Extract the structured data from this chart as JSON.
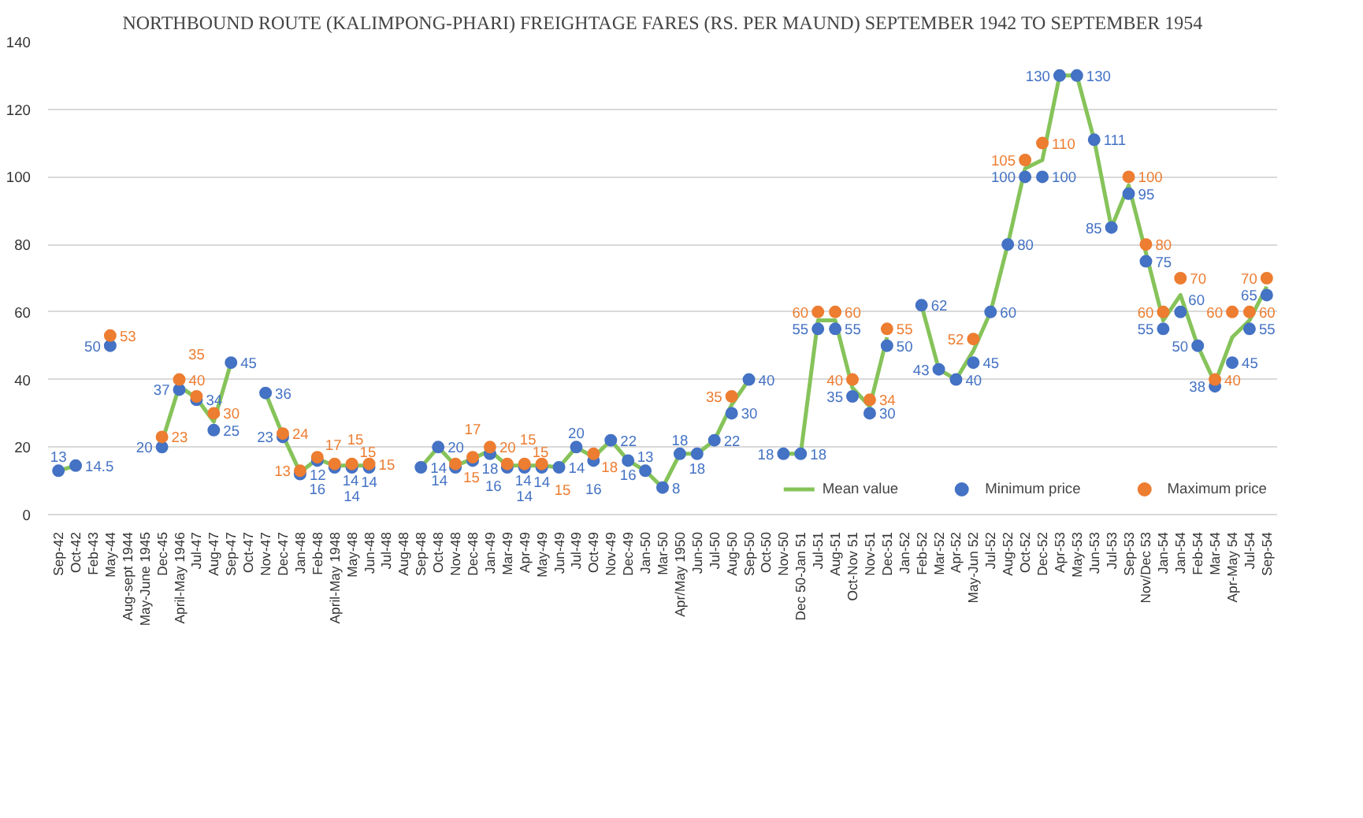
{
  "chart_data": {
    "type": "line",
    "title": "NORTHBOUND ROUTE (KALIMPONG-PHARI) FREIGHTAGE FARES (RS. PER MAUND) SEPTEMBER 1942 TO SEPTEMBER 1954",
    "categories": [
      "Sep-42",
      "Oct-42",
      "Feb-43",
      "May-44",
      "Aug-sept 1944",
      "May-June 1945",
      "Dec-45",
      "April-May 1946",
      "Jul-47",
      "Aug-47",
      "Sep-47",
      "Oct-47",
      "Nov-47",
      "Dec-47",
      "Jan-48",
      "Feb-48",
      "April-May 1948",
      "May-48",
      "Jun-48",
      "Jul-48",
      "Aug-48",
      "Sep-48",
      "Oct-48",
      "Nov-48",
      "Dec-48",
      "Jan-49",
      "Mar-49",
      "Apr-49",
      "May-49",
      "Jun-49",
      "Jul-49",
      "Oct-49",
      "Nov-49",
      "Dec-49",
      "Jan-50",
      "Mar-50",
      "Apr/May 1950",
      "Jun-50",
      "Jul-50",
      "Aug-50",
      "Sep-50",
      "Oct-50",
      "Nov-50",
      "Dec 50-Jan 51",
      "Jul-51",
      "Aug-51",
      "Oct-Nov 51",
      "Nov-51",
      "Dec-51",
      "Jan-52",
      "Feb-52",
      "Mar-52",
      "Apr-52",
      "May-Jun 52",
      "Jul-52",
      "Aug-52",
      "Oct-52",
      "Dec-52",
      "Apr-53",
      "May-53",
      "Jun-53",
      "Jul-53",
      "Sep-53",
      "Nov/Dec 53",
      "Jan-54",
      "Jan-54",
      "Feb-54",
      "Mar-54",
      "Apr-May 54",
      "Jul-54",
      "Sep-54"
    ],
    "series": [
      {
        "name": "Mean value",
        "color": "#86c35a",
        "marker": "none",
        "values": [
          13,
          14.5,
          null,
          null,
          null,
          null,
          21.5,
          38,
          34.5,
          27.5,
          45,
          null,
          36,
          23.5,
          12.5,
          16.5,
          14.5,
          14.5,
          14.5,
          null,
          null,
          14,
          20,
          14.5,
          16.5,
          19,
          14.5,
          14.5,
          14.5,
          14,
          20,
          17,
          22,
          16,
          13,
          8,
          18,
          18,
          22,
          32.5,
          40,
          null,
          18,
          18,
          57.5,
          57.5,
          37.5,
          32,
          52.5,
          null,
          62,
          43,
          40,
          48.5,
          60,
          80,
          102.5,
          105,
          130,
          130,
          111,
          85,
          97.5,
          77.5,
          57.5,
          65,
          50,
          39,
          52.5,
          57.5,
          67.5
        ]
      },
      {
        "name": "Minimum price",
        "type": "scatter",
        "color": "#4472c4",
        "marker": "circle",
        "values": [
          13,
          14.5,
          null,
          50,
          null,
          null,
          20,
          37,
          34,
          25,
          45,
          null,
          36,
          23,
          12,
          16,
          14,
          14,
          14,
          null,
          null,
          14,
          20,
          14,
          16,
          18,
          14,
          14,
          14,
          14,
          20,
          16,
          22,
          16,
          13,
          8,
          18,
          18,
          22,
          30,
          40,
          null,
          18,
          18,
          55,
          55,
          35,
          30,
          50,
          null,
          62,
          43,
          40,
          45,
          60,
          80,
          100,
          100,
          130,
          130,
          111,
          85,
          95,
          75,
          55,
          60,
          50,
          38,
          45,
          55,
          65
        ],
        "value_labels": [
          "13",
          "14.5",
          null,
          "50",
          null,
          null,
          "20",
          "37",
          "34",
          "25",
          "45",
          null,
          "36",
          "23",
          "12",
          "16",
          "14",
          "14",
          "14",
          null,
          null,
          "14",
          "20",
          "14",
          "16",
          "18",
          "14",
          "14",
          "14",
          "14",
          "20",
          "16",
          "22",
          "16",
          "13",
          "8",
          "18",
          "18",
          "22",
          "30",
          "40",
          null,
          "18",
          "18",
          "55",
          "55",
          "35",
          "30",
          "50",
          null,
          "62",
          "43",
          "40",
          "45",
          "60",
          "80",
          "100",
          "100",
          "130",
          "130",
          "111",
          "85",
          "95",
          "75",
          "55",
          "60",
          "50",
          "38",
          "45",
          "55",
          "65"
        ]
      },
      {
        "name": "Maximum price",
        "type": "scatter",
        "color": "#ed7d31",
        "marker": "circle",
        "values": [
          null,
          null,
          null,
          53,
          null,
          null,
          23,
          40,
          35,
          30,
          null,
          null,
          null,
          24,
          13,
          17,
          15,
          15,
          15,
          null,
          null,
          null,
          null,
          15,
          17,
          20,
          15,
          15,
          15,
          null,
          null,
          18,
          null,
          null,
          null,
          null,
          null,
          null,
          null,
          35,
          null,
          null,
          null,
          null,
          60,
          60,
          40,
          34,
          55,
          null,
          null,
          null,
          null,
          52,
          null,
          null,
          105,
          110,
          null,
          null,
          null,
          null,
          100,
          80,
          60,
          70,
          null,
          40,
          60,
          60,
          70
        ],
        "value_labels": [
          null,
          null,
          null,
          "53",
          null,
          null,
          "23",
          "40",
          "35",
          "30",
          null,
          null,
          null,
          "24",
          "13",
          "17",
          "15",
          "15",
          "15",
          null,
          null,
          null,
          null,
          "15",
          "17",
          "20",
          "15",
          "15",
          "15",
          null,
          null,
          "18",
          null,
          null,
          null,
          null,
          null,
          null,
          null,
          "35",
          null,
          null,
          null,
          null,
          "60",
          "60",
          "40",
          "34",
          "55",
          null,
          null,
          null,
          null,
          "52",
          null,
          null,
          "105",
          "110",
          null,
          null,
          null,
          null,
          "100",
          "80",
          "60",
          "70",
          null,
          "40",
          "60",
          "60",
          "70"
        ]
      }
    ],
    "ylim": [
      0,
      140
    ],
    "yticks": [
      0,
      20,
      40,
      60,
      80,
      100,
      120,
      140
    ],
    "grid": "y",
    "legend": "bottom right"
  }
}
